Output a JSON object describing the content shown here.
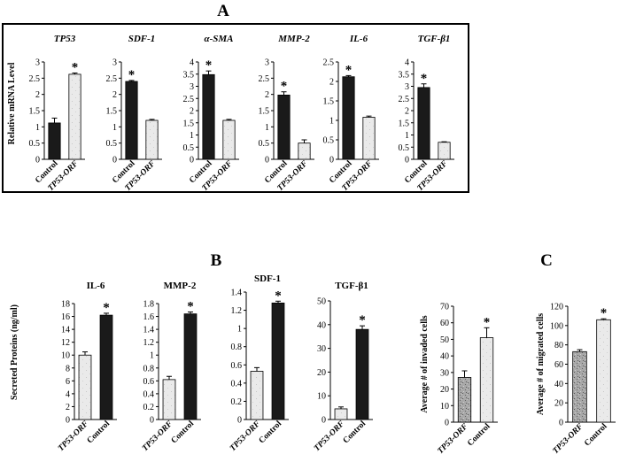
{
  "panel_labels": {
    "a": "A",
    "b": "B",
    "c": "C"
  },
  "chart_data": [
    {
      "id": "A",
      "type": "bar",
      "ylabel": "Relative mRNA Level",
      "subplots": [
        {
          "title": "TP53",
          "categories": [
            "Control",
            "TP53-ORF"
          ],
          "tick_labels": [
            "Control",
            "TP53-ORF"
          ],
          "italic": [
            false,
            true
          ],
          "values": [
            1.12,
            2.62
          ],
          "errors": [
            0.15,
            0.04
          ],
          "fills": [
            "dark",
            "light"
          ],
          "ylim": [
            0,
            3
          ],
          "ticks": [
            "0",
            "0.5",
            "1",
            "1.5",
            "2",
            "2.5",
            "3"
          ],
          "star": 1,
          "star_text": "*"
        },
        {
          "title": "SDF-1",
          "categories": [
            "Control",
            "TP53-ORF"
          ],
          "tick_labels": [
            "Control",
            "TP53-ORF"
          ],
          "italic": [
            false,
            true
          ],
          "values": [
            2.4,
            1.2
          ],
          "errors": [
            0.03,
            0.03
          ],
          "fills": [
            "dark",
            "light"
          ],
          "ylim": [
            0,
            3
          ],
          "ticks": [
            "0",
            "0.5",
            "1",
            "1.5",
            "2",
            "2.5",
            "3"
          ],
          "star": 0,
          "star_text": "*"
        },
        {
          "title": "α-SMA",
          "categories": [
            "Control",
            "TP53-ORF"
          ],
          "tick_labels": [
            "Control",
            "TP53-ORF"
          ],
          "italic": [
            false,
            true
          ],
          "values": [
            3.48,
            1.6
          ],
          "errors": [
            0.15,
            0.04
          ],
          "fills": [
            "dark",
            "light"
          ],
          "ylim": [
            0,
            4
          ],
          "ticks": [
            "0",
            "0.5",
            "1",
            "1.5",
            "2",
            "2.5",
            "3",
            "3.5",
            "4"
          ],
          "star": 0,
          "star_text": "*"
        },
        {
          "title": "MMP-2",
          "categories": [
            "Control",
            "TP53-ORF"
          ],
          "tick_labels": [
            "Control",
            "TP53-ORF"
          ],
          "italic": [
            false,
            true
          ],
          "values": [
            1.98,
            0.5
          ],
          "errors": [
            0.1,
            0.1
          ],
          "fills": [
            "dark",
            "light"
          ],
          "ylim": [
            0,
            3
          ],
          "ticks": [
            "0",
            "0.5",
            "1",
            "1.5",
            "2",
            "2.5",
            "3"
          ],
          "star": 0,
          "star_text": "*"
        },
        {
          "title": "IL-6",
          "categories": [
            "Control",
            "TP53-ORF"
          ],
          "tick_labels": [
            "Control",
            "TP53-ORF"
          ],
          "italic": [
            false,
            true
          ],
          "values": [
            2.12,
            1.08
          ],
          "errors": [
            0.03,
            0.03
          ],
          "fills": [
            "dark",
            "light"
          ],
          "ylim": [
            0,
            2.5
          ],
          "ticks": [
            "0",
            "0.5",
            "1",
            "1.5",
            "2",
            "2.5"
          ],
          "star": 0,
          "star_text": "*"
        },
        {
          "title": "TGF-β1",
          "categories": [
            "Control",
            "TP53-ORF"
          ],
          "tick_labels": [
            "Control",
            "TP53-ORF"
          ],
          "italic": [
            false,
            true
          ],
          "values": [
            2.95,
            0.7
          ],
          "errors": [
            0.15,
            0.02
          ],
          "fills": [
            "dark",
            "light"
          ],
          "ylim": [
            0,
            4
          ],
          "ticks": [
            "0",
            "0.5",
            "1",
            "1.5",
            "2",
            "2.5",
            "3",
            "3.5",
            "4"
          ],
          "star": 0,
          "star_text": "*"
        }
      ]
    },
    {
      "id": "B",
      "type": "bar",
      "ylabel": "Secreted Proteins (ng/ml)",
      "subplots": [
        {
          "title": "IL-6",
          "categories": [
            "TP53-ORF",
            "Control"
          ],
          "tick_labels": [
            "TP53-ORF",
            "Control"
          ],
          "italic": [
            true,
            false
          ],
          "values": [
            10.0,
            16.2
          ],
          "errors": [
            0.5,
            0.3
          ],
          "fills": [
            "light",
            "dark"
          ],
          "ylim": [
            0,
            18
          ],
          "ticks": [
            "0",
            "2",
            "4",
            "6",
            "8",
            "10",
            "12",
            "14",
            "16",
            "18"
          ],
          "star": 1,
          "star_text": "*"
        },
        {
          "title": "MMP-2",
          "categories": [
            "TP53-ORF",
            "Control"
          ],
          "tick_labels": [
            "TP53-ORF",
            "Control"
          ],
          "italic": [
            true,
            false
          ],
          "values": [
            0.62,
            1.64
          ],
          "errors": [
            0.05,
            0.03
          ],
          "fills": [
            "light",
            "dark"
          ],
          "ylim": [
            0,
            1.8
          ],
          "ticks": [
            "0",
            "0.2",
            "0.4",
            "0.6",
            "0.8",
            "1",
            "1.2",
            "1.4",
            "1.6",
            "1.8"
          ],
          "star": 1,
          "star_text": "*"
        },
        {
          "title": "SDF-1",
          "categories": [
            "TP53-ORF",
            "Control"
          ],
          "tick_labels": [
            "TP53-ORF",
            "Control"
          ],
          "italic": [
            true,
            false
          ],
          "values": [
            0.53,
            1.28
          ],
          "errors": [
            0.04,
            0.02
          ],
          "fills": [
            "light",
            "dark"
          ],
          "ylim": [
            0,
            1.4
          ],
          "ticks": [
            "0",
            "0.2",
            "0.4",
            "0.6",
            "0.8",
            "1",
            "1.2",
            "1.4"
          ],
          "star": 1,
          "star_text": "*"
        },
        {
          "title": "TGF-β1",
          "categories": [
            "TP53-ORF",
            "Control"
          ],
          "tick_labels": [
            "TP53-ORF",
            "Control"
          ],
          "italic": [
            true,
            false
          ],
          "values": [
            4.5,
            38.0
          ],
          "errors": [
            0.8,
            1.5
          ],
          "fills": [
            "light",
            "dark"
          ],
          "ylim": [
            0,
            50
          ],
          "ticks": [
            "0",
            "10",
            "20",
            "30",
            "40",
            "50"
          ],
          "star": 1,
          "star_text": "*"
        }
      ]
    },
    {
      "id": "C",
      "type": "bar",
      "subplots": [
        {
          "title": "",
          "ylabel": "Average # of invaded cells",
          "categories": [
            "TP53-ORF",
            "Control"
          ],
          "tick_labels": [
            "TP53-ORF",
            "Control"
          ],
          "italic": [
            true,
            false
          ],
          "values": [
            27,
            51
          ],
          "errors": [
            4,
            6
          ],
          "fills": [
            "speckle",
            "light"
          ],
          "ylim": [
            0,
            70
          ],
          "ticks": [
            "0",
            "10",
            "20",
            "30",
            "40",
            "50",
            "60",
            "70"
          ],
          "star": 1,
          "star_text": "*"
        },
        {
          "title": "",
          "ylabel": "Average # of migrated cells",
          "categories": [
            "TP53-ORF",
            "Control"
          ],
          "tick_labels": [
            "TP53-ORF",
            "Control"
          ],
          "italic": [
            true,
            false
          ],
          "values": [
            73,
            106
          ],
          "errors": [
            2,
            1
          ],
          "fills": [
            "speckle",
            "light"
          ],
          "ylim": [
            0,
            120
          ],
          "ticks": [
            "0",
            "20",
            "40",
            "60",
            "80",
            "100",
            "120"
          ],
          "star": 1,
          "star_text": "*"
        }
      ]
    }
  ]
}
